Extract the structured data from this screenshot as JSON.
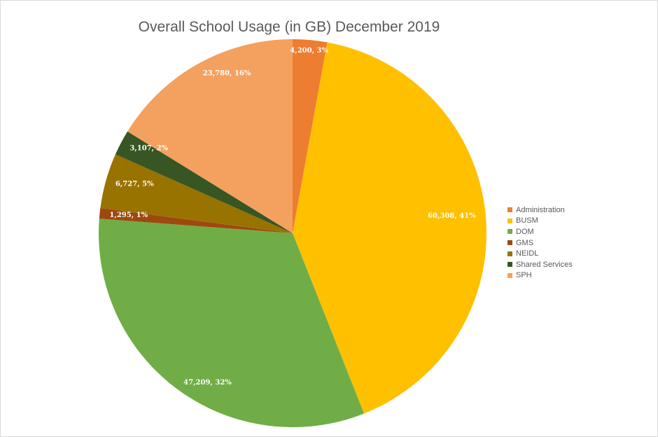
{
  "chart_data": {
    "type": "pie",
    "title": "Overall School Usage (in GB) December 2019",
    "start_angle_deg": 0,
    "direction": "clockwise",
    "legend_position": "right",
    "slices": [
      {
        "name": "Administration",
        "value": 4200,
        "percent": 3,
        "label": "4,200, 3%",
        "color": "#ED7D31"
      },
      {
        "name": "BUSM",
        "value": 60308,
        "percent": 41,
        "label": "60,308, 41%",
        "color": "#FFC000"
      },
      {
        "name": "DOM",
        "value": 47209,
        "percent": 32,
        "label": "47,209, 32%",
        "color": "#70AD47"
      },
      {
        "name": "GMS",
        "value": 1295,
        "percent": 1,
        "label": "1,295, 1%",
        "color": "#9E480E"
      },
      {
        "name": "NEIDL",
        "value": 6727,
        "percent": 5,
        "label": "6,727, 5%",
        "color": "#997300"
      },
      {
        "name": "Shared Services",
        "value": 3107,
        "percent": 2,
        "label": "3,107, 2%",
        "color": "#375623"
      },
      {
        "name": "SPH",
        "value": 23780,
        "percent": 16,
        "label": "23,780, 16%",
        "color": "#F4A05F"
      }
    ]
  }
}
